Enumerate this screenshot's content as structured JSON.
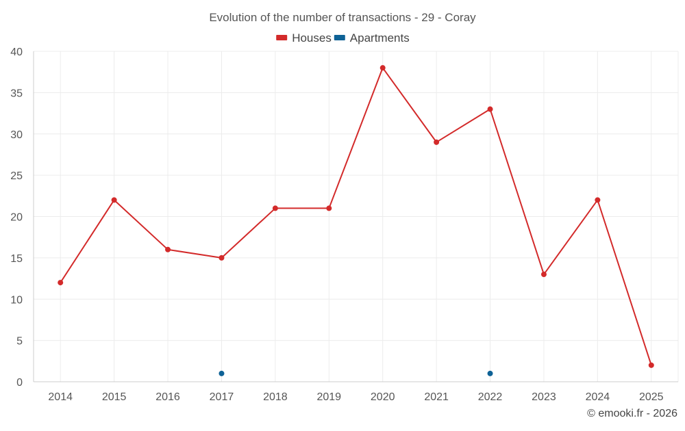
{
  "chart_data": {
    "type": "line",
    "title": "Evolution of the number of transactions - 29 - Coray",
    "categories": [
      "2014",
      "2015",
      "2016",
      "2017",
      "2018",
      "2019",
      "2020",
      "2021",
      "2022",
      "2023",
      "2024",
      "2025"
    ],
    "ylim": [
      0,
      40
    ],
    "yticks": [
      0,
      5,
      10,
      15,
      20,
      25,
      30,
      35,
      40
    ],
    "grid": true,
    "legend_position": "top-center",
    "series": [
      {
        "name": "Houses",
        "color": "#d32a2a",
        "values": [
          12,
          22,
          16,
          15,
          21,
          21,
          38,
          29,
          33,
          13,
          22,
          2
        ],
        "connect": true
      },
      {
        "name": "Apartments",
        "color": "#0e6296",
        "values": [
          null,
          null,
          null,
          1,
          null,
          null,
          null,
          null,
          1,
          null,
          null,
          null
        ],
        "connect": false
      }
    ]
  },
  "footer": {
    "credit": "© emooki.fr - 2026"
  }
}
